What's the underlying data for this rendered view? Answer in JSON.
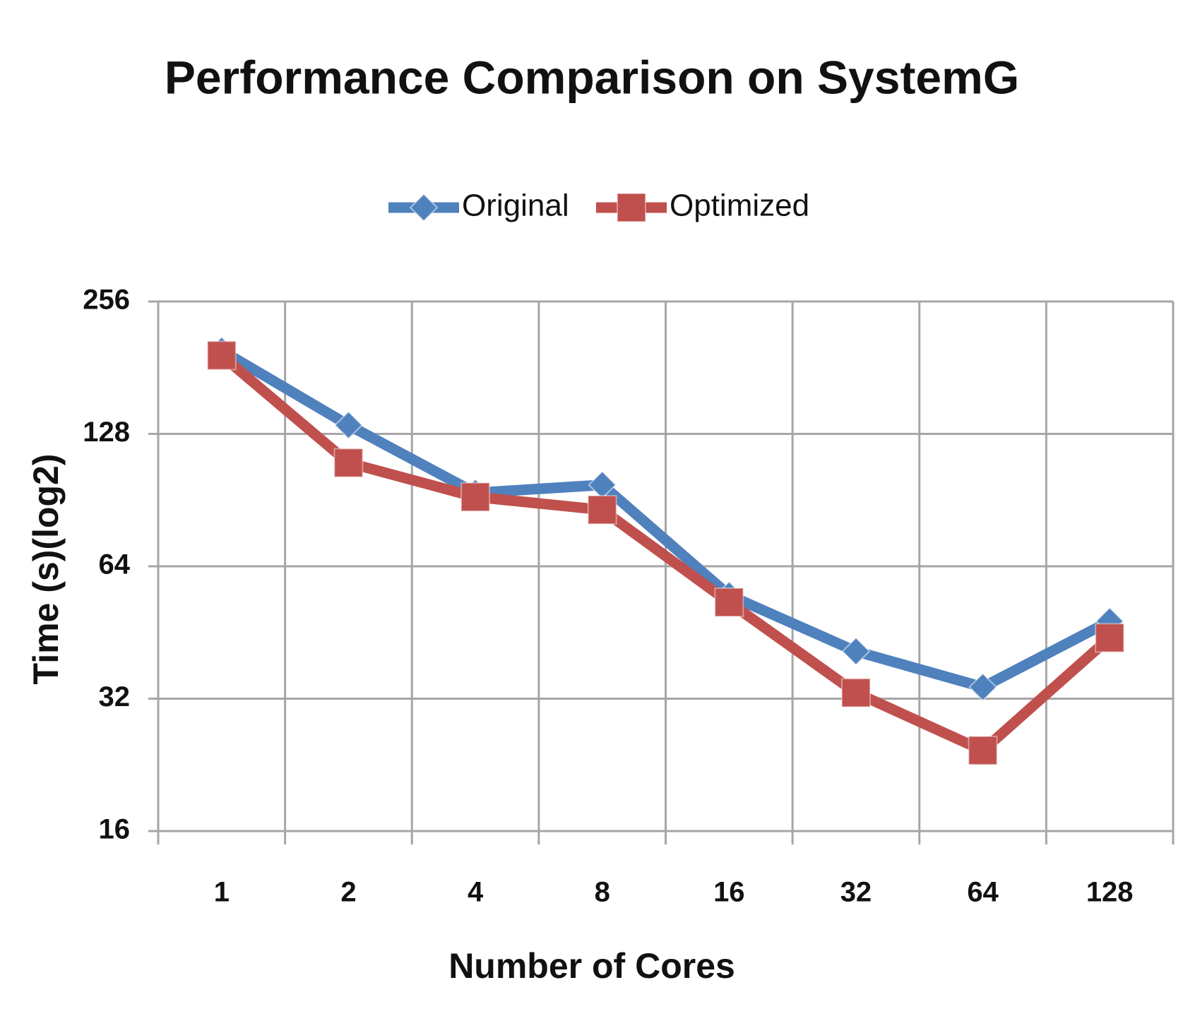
{
  "chart_data": {
    "type": "line",
    "title": "Performance Comparison on SystemG",
    "x_label": "Number of Cores",
    "y_label": "Time (s)(log2)",
    "categories": [
      "1",
      "2",
      "4",
      "8",
      "16",
      "32",
      "64",
      "128"
    ],
    "series": [
      {
        "name": "Original",
        "color": "#4f81bd",
        "marker": "diamond",
        "values": [
          198,
          134,
          94,
          98,
          55,
          41,
          34,
          48
        ]
      },
      {
        "name": "Optimized",
        "color": "#c0504d",
        "marker": "square",
        "values": [
          193,
          110,
          92,
          86,
          53,
          33,
          24.4,
          44
        ]
      }
    ],
    "ylim": [
      16,
      256
    ],
    "yticks": [
      16,
      32,
      64,
      128,
      256
    ],
    "yscale": "log",
    "log_base": 2,
    "grid": true,
    "legend": "top"
  }
}
